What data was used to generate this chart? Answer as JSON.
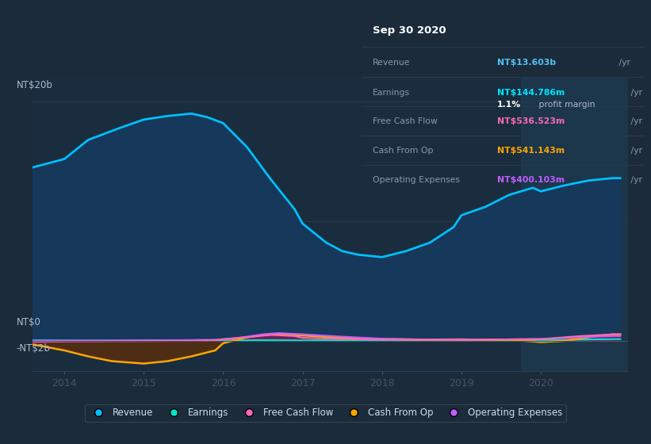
{
  "bg_color": "#1c2b3a",
  "plot_bg_color": "#1a2d3e",
  "highlight_bg_color": "#1e3048",
  "title": "Sep 30 2020",
  "info_box": {
    "Revenue": {
      "value": "NT$13.603b",
      "color": "#4fc3f7"
    },
    "Earnings": {
      "value": "NT$144.786m",
      "color": "#00e5ff"
    },
    "profit_margin": "1.1%",
    "Free Cash Flow": {
      "value": "NT$536.523m",
      "color": "#ff69b4"
    },
    "Cash From Op": {
      "value": "NT$541.143m",
      "color": "#ffa500"
    },
    "Operating Expenses": {
      "value": "NT$400.103m",
      "color": "#bf5fff"
    }
  },
  "x_ticks": [
    2014,
    2015,
    2016,
    2017,
    2018,
    2019,
    2020
  ],
  "ylim": [
    -2.5,
    22
  ],
  "xlim": [
    2013.6,
    2021.1
  ],
  "legend": [
    {
      "label": "Revenue",
      "color": "#00bfff"
    },
    {
      "label": "Earnings",
      "color": "#00e6cc"
    },
    {
      "label": "Free Cash Flow",
      "color": "#ff69b4"
    },
    {
      "label": "Cash From Op",
      "color": "#ffa500"
    },
    {
      "label": "Operating Expenses",
      "color": "#bf5fff"
    }
  ],
  "revenue_x": [
    2013.6,
    2014.0,
    2014.3,
    2014.7,
    2015.0,
    2015.3,
    2015.6,
    2015.8,
    2016.0,
    2016.3,
    2016.6,
    2016.9,
    2017.0,
    2017.3,
    2017.5,
    2017.7,
    2018.0,
    2018.3,
    2018.6,
    2018.9,
    2019.0,
    2019.3,
    2019.6,
    2019.9,
    2020.0,
    2020.3,
    2020.6,
    2020.9,
    2021.0
  ],
  "revenue_y": [
    14.5,
    15.2,
    16.8,
    17.8,
    18.5,
    18.8,
    19.0,
    18.7,
    18.2,
    16.2,
    13.5,
    11.0,
    9.8,
    8.2,
    7.5,
    7.2,
    7.0,
    7.5,
    8.2,
    9.5,
    10.5,
    11.2,
    12.2,
    12.8,
    12.5,
    13.0,
    13.4,
    13.603,
    13.603
  ],
  "earnings_x": [
    2013.6,
    2014.0,
    2014.5,
    2015.0,
    2015.5,
    2016.0,
    2016.5,
    2017.0,
    2017.5,
    2018.0,
    2018.5,
    2019.0,
    2019.5,
    2020.0,
    2020.5,
    2020.9,
    2021.0
  ],
  "earnings_y": [
    0.05,
    0.03,
    0.02,
    0.04,
    0.05,
    0.04,
    0.06,
    0.04,
    0.05,
    0.04,
    0.05,
    0.05,
    0.06,
    0.06,
    0.1,
    0.144,
    0.144
  ],
  "fcf_x": [
    2013.6,
    2014.0,
    2014.5,
    2015.0,
    2015.3,
    2015.6,
    2015.9,
    2016.0,
    2016.3,
    2016.6,
    2016.9,
    2017.0,
    2017.5,
    2018.0,
    2018.5,
    2019.0,
    2019.5,
    2020.0,
    2020.5,
    2020.9,
    2021.0
  ],
  "fcf_y": [
    -0.08,
    -0.05,
    -0.03,
    -0.02,
    -0.01,
    0.0,
    0.05,
    0.15,
    0.3,
    0.5,
    0.4,
    0.25,
    0.15,
    0.1,
    0.1,
    0.08,
    0.12,
    0.15,
    0.4,
    0.536,
    0.536
  ],
  "cfo_x": [
    2013.6,
    2014.0,
    2014.3,
    2014.6,
    2015.0,
    2015.3,
    2015.6,
    2015.9,
    2016.0,
    2016.3,
    2016.5,
    2016.7,
    2017.0,
    2017.5,
    2018.0,
    2018.5,
    2019.0,
    2019.3,
    2019.6,
    2020.0,
    2020.3,
    2020.6,
    2020.9,
    2021.0
  ],
  "cfo_y": [
    -0.3,
    -0.8,
    -1.3,
    -1.7,
    -1.9,
    -1.7,
    -1.3,
    -0.8,
    -0.2,
    0.3,
    0.5,
    0.55,
    0.45,
    0.25,
    0.15,
    0.1,
    0.12,
    0.08,
    0.1,
    -0.1,
    0.0,
    0.3,
    0.541,
    0.541
  ],
  "oe_x": [
    2013.6,
    2014.0,
    2014.5,
    2015.0,
    2015.5,
    2016.0,
    2016.3,
    2016.5,
    2016.7,
    2017.0,
    2017.5,
    2018.0,
    2018.5,
    2019.0,
    2019.5,
    2020.0,
    2020.5,
    2020.9,
    2021.0
  ],
  "oe_y": [
    0.02,
    0.02,
    0.03,
    0.04,
    0.06,
    0.1,
    0.35,
    0.55,
    0.65,
    0.55,
    0.35,
    0.18,
    0.12,
    0.1,
    0.12,
    0.15,
    0.3,
    0.4,
    0.4
  ]
}
